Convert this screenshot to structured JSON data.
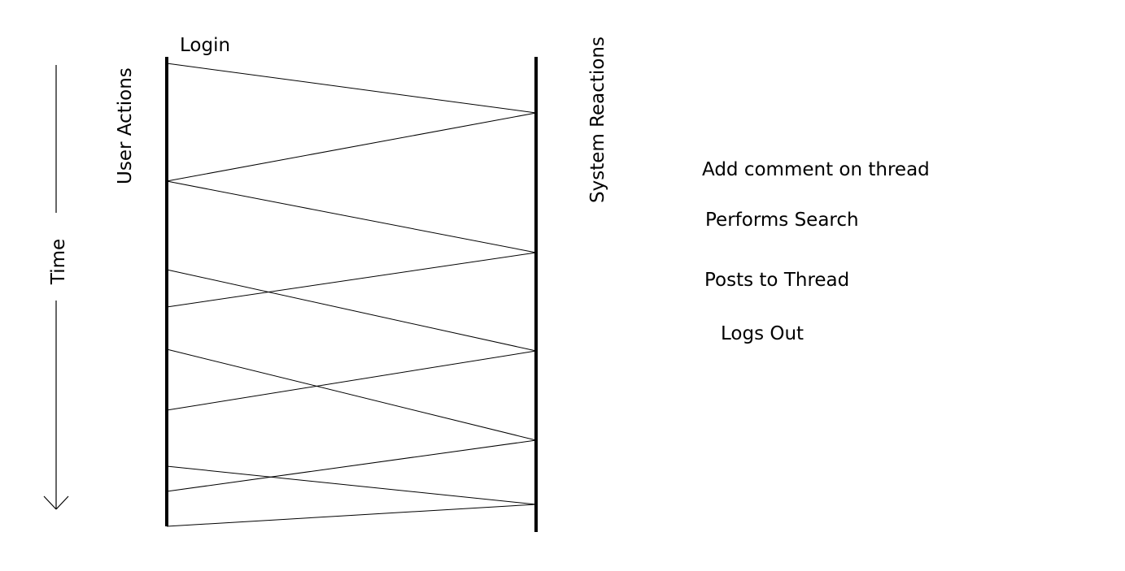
{
  "labels": {
    "login": "Login",
    "user_actions": "User Actions",
    "system_reactions": "System Reactions",
    "time": "Time"
  },
  "notes": [
    "Add comment on thread",
    "Performs Search",
    "Posts to Thread",
    "Logs Out"
  ],
  "colors": {
    "line": "#000000",
    "background": "#ffffff"
  }
}
